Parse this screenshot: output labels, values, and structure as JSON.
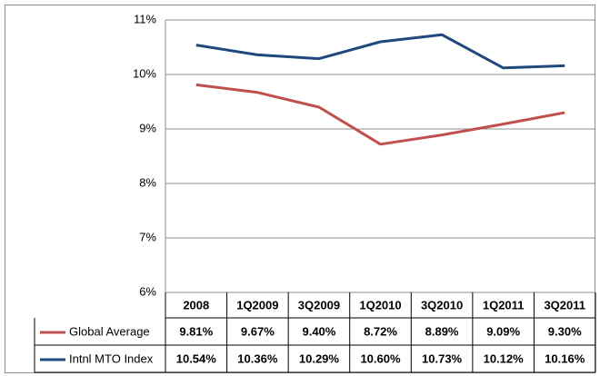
{
  "chart_data": {
    "type": "line",
    "categories": [
      "2008",
      "1Q2009",
      "3Q2009",
      "1Q2010",
      "3Q2010",
      "1Q2011",
      "3Q2011"
    ],
    "series": [
      {
        "name": "Global Average",
        "color": "#c0504d",
        "values": [
          9.81,
          9.67,
          9.4,
          8.72,
          8.89,
          9.09,
          9.3
        ],
        "value_labels": [
          "9.81%",
          "9.67%",
          "9.40%",
          "8.72%",
          "8.89%",
          "9.09%",
          "9.30%"
        ]
      },
      {
        "name": "Intnl MTO Index",
        "color": "#1f497d",
        "values": [
          10.54,
          10.36,
          10.29,
          10.6,
          10.73,
          10.12,
          10.16
        ],
        "value_labels": [
          "10.54%",
          "10.36%",
          "10.29%",
          "10.60%",
          "10.73%",
          "10.12%",
          "10.16%"
        ]
      }
    ],
    "ylim": [
      6,
      11
    ],
    "yticks": [
      {
        "value": 6,
        "label": "6%"
      },
      {
        "value": 7,
        "label": "7%"
      },
      {
        "value": 8,
        "label": "8%"
      },
      {
        "value": 9,
        "label": "9%"
      },
      {
        "value": 10,
        "label": "10%"
      },
      {
        "value": 11,
        "label": "11%"
      }
    ],
    "grid": true
  }
}
